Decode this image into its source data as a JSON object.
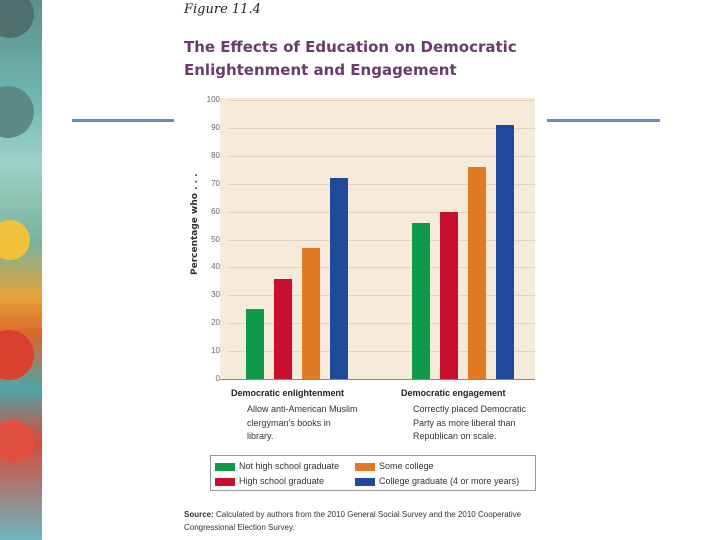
{
  "figure_label": "Figure 11.4",
  "title": "The Effects of Education on Democratic Enlightenment and Engagement",
  "colors": {
    "title": "#6b3a6e",
    "chart_background": "#f6eadb",
    "accent_lines": "#5a8fc4"
  },
  "chart_data": {
    "type": "bar",
    "title": "The Effects of Education on Democratic Enlightenment and Engagement",
    "ylabel": "Percentage who . . .",
    "xlabel": "",
    "ylim": [
      0,
      100
    ],
    "yticks": [
      0,
      10,
      20,
      30,
      40,
      50,
      60,
      70,
      80,
      90,
      100
    ],
    "grid": false,
    "categories": [
      "Democratic enlightenment",
      "Democratic engagement"
    ],
    "category_descriptions": [
      "Allow anti-American Muslim clergyman's books in library.",
      "Correctly placed Democratic Party as more liberal than Republican on scale."
    ],
    "series": [
      {
        "name": "Not high school graduate",
        "color": "#0e9a48",
        "values": [
          25,
          56
        ]
      },
      {
        "name": "High school graduate",
        "color": "#c8102e",
        "values": [
          36,
          60
        ]
      },
      {
        "name": "Some college",
        "color": "#e07b24",
        "values": [
          47,
          76
        ]
      },
      {
        "name": "College graduate (4 or more years)",
        "color": "#1f4a9a",
        "values": [
          72,
          91
        ]
      }
    ],
    "legend_position": "bottom"
  },
  "source": {
    "label": "Source:",
    "text": "Calculated by authors from the 2010 General Social Survey and the 2010 Cooperative Congressional Election Survey."
  }
}
